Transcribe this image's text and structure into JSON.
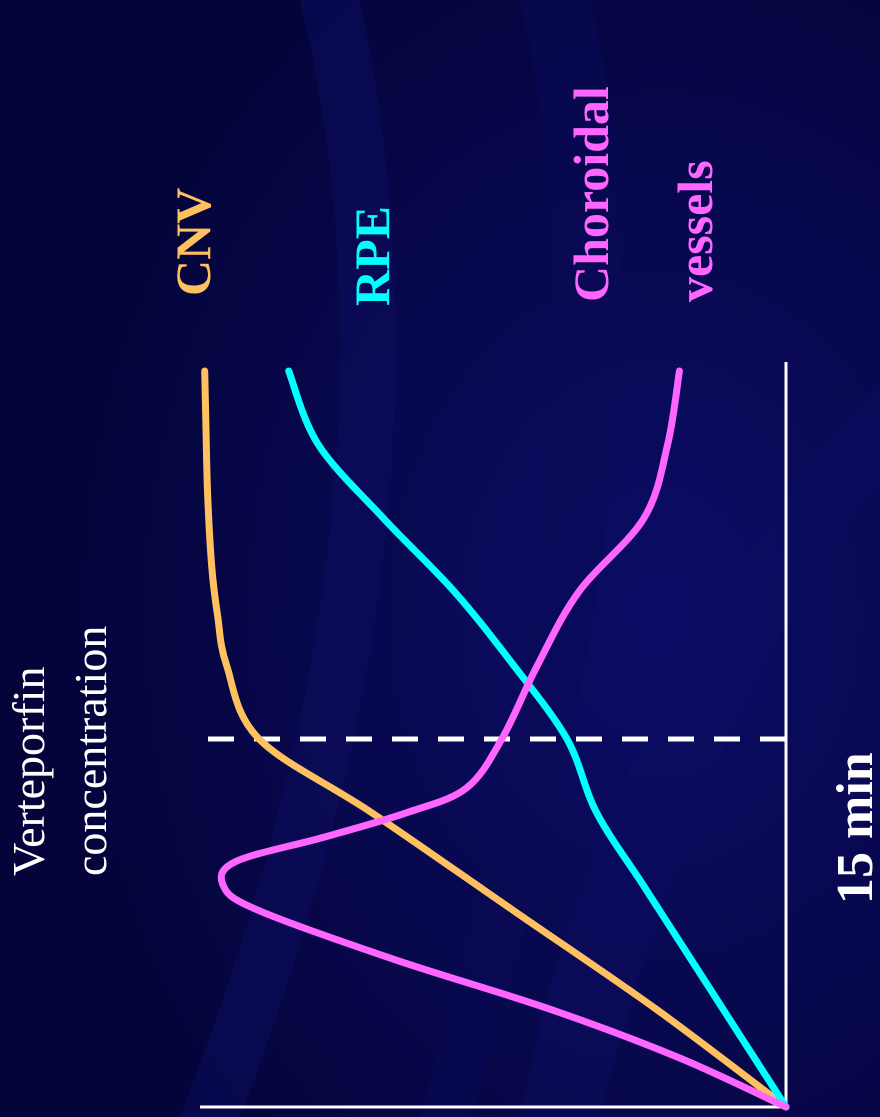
{
  "chart_data": {
    "type": "line",
    "orientation": "rotated-90-ccw",
    "ylabel_lines": [
      "Verteporfin",
      "concentration"
    ],
    "xlabel": "",
    "marker": {
      "x": 15,
      "label": "15 min",
      "style": "dashed",
      "color": "#ffffff"
    },
    "xlim": [
      0,
      30
    ],
    "ylim": [
      0,
      10
    ],
    "grid": false,
    "legend": "direct labels at curve ends",
    "series": [
      {
        "name": "CNV",
        "color": "#ffc060",
        "x": [
          0,
          4,
          8,
          12,
          15,
          18,
          20,
          22,
          25,
          28,
          30
        ],
        "y": [
          0,
          2.2,
          4.6,
          7.0,
          8.9,
          9.45,
          9.6,
          9.7,
          9.77,
          9.8,
          9.82
        ]
      },
      {
        "name": "RPE",
        "color": "#00ffff",
        "x": [
          0,
          3,
          6,
          9,
          12,
          15,
          18,
          21,
          24,
          27,
          30
        ],
        "y": [
          0,
          0.8,
          1.6,
          2.4,
          3.2,
          3.7,
          4.6,
          5.6,
          6.8,
          7.9,
          8.4
        ]
      },
      {
        "name": "Choroidal vessels",
        "color": "#ff66ff",
        "x": [
          0,
          2,
          4,
          6,
          8,
          9,
          10,
          11,
          12,
          13,
          15,
          18,
          21,
          24,
          27,
          30
        ],
        "y": [
          0,
          1.8,
          4.0,
          6.6,
          8.9,
          9.5,
          9.3,
          7.8,
          6.4,
          5.4,
          4.8,
          4.2,
          3.5,
          2.4,
          2.0,
          1.8
        ]
      }
    ],
    "series_labels": [
      {
        "series": 0,
        "lines": [
          "CNV"
        ]
      },
      {
        "series": 1,
        "lines": [
          "RPE"
        ]
      },
      {
        "series": 2,
        "lines": [
          "Choroidal",
          "vessels"
        ]
      }
    ]
  }
}
